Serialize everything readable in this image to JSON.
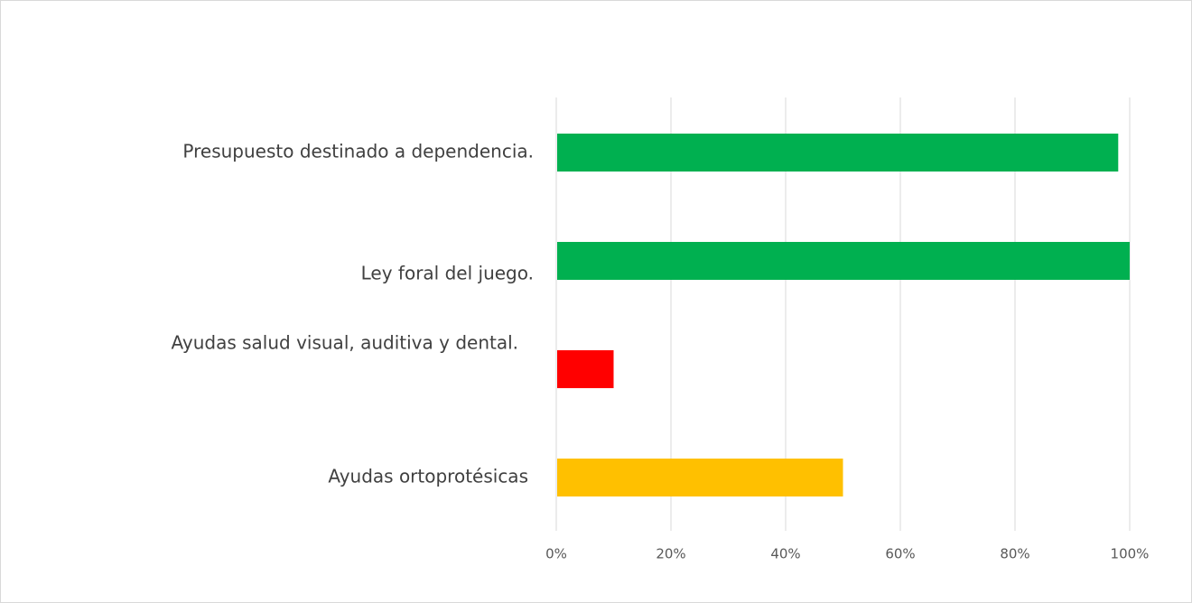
{
  "chart_data": {
    "type": "bar",
    "orientation": "horizontal",
    "categories": [
      "Presupuesto destinado a dependencia.",
      "Ley foral del juego.",
      "Ayudas salud visual, auditiva y dental.",
      "Ayudas ortoprotésicas"
    ],
    "values": [
      98,
      100,
      10,
      50
    ],
    "bar_colors": [
      "#00b050",
      "#00b050",
      "#ff0000",
      "#ffc000"
    ],
    "xaxis": {
      "ticks": [
        0,
        20,
        40,
        60,
        80,
        100
      ],
      "tick_labels": [
        "0%",
        "20%",
        "40%",
        "60%",
        "80%",
        "100%"
      ],
      "range": [
        0,
        100
      ]
    },
    "grid": true,
    "gridline_color": "#d9d9d9",
    "legend": "none",
    "title": "",
    "xlabel": "",
    "ylabel": ""
  }
}
